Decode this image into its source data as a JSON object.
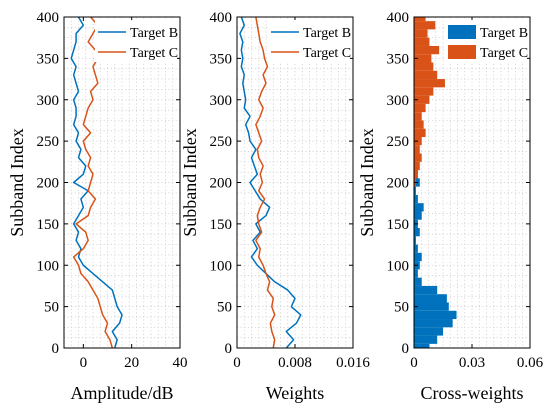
{
  "chart_data": [
    {
      "type": "line",
      "orientation": "x-value vs subband-index",
      "xlabel": "Amplitude/dB",
      "ylabel": "Subband Index",
      "xlim": [
        -8,
        40
      ],
      "ylim": [
        0,
        400
      ],
      "xticks": [
        0,
        20,
        40
      ],
      "yticks": [
        0,
        50,
        100,
        150,
        200,
        250,
        300,
        350,
        400
      ],
      "grid": true,
      "legend": "top-right",
      "y": [
        0,
        10,
        20,
        30,
        40,
        50,
        60,
        70,
        80,
        90,
        100,
        110,
        120,
        130,
        140,
        150,
        160,
        170,
        180,
        190,
        200,
        210,
        220,
        230,
        240,
        250,
        260,
        270,
        280,
        290,
        300,
        310,
        320,
        330,
        340,
        350,
        360,
        370,
        380,
        390,
        400
      ],
      "series": [
        {
          "name": "Target B",
          "color": "#0072BD",
          "values": [
            13,
            14,
            12,
            15,
            16,
            14,
            13,
            12,
            8,
            4,
            0,
            -2,
            -1,
            -3,
            -2,
            -4,
            -2,
            0,
            -1,
            2,
            -4,
            0,
            1,
            -2,
            -1,
            -3,
            -2,
            -4,
            -3,
            -3,
            -4,
            -2,
            -3,
            -4,
            -3,
            -5,
            -4,
            -3,
            -3,
            0,
            -2
          ]
        },
        {
          "name": "Target C",
          "color": "#D95319",
          "values": [
            12,
            11,
            9,
            10,
            8,
            7,
            6,
            4,
            2,
            -1,
            -2,
            -4,
            0,
            2,
            1,
            -3,
            2,
            3,
            5,
            2,
            3,
            4,
            2,
            3,
            1,
            0,
            3,
            0,
            1,
            2,
            4,
            3,
            6,
            5,
            4,
            6,
            5,
            2,
            4,
            6,
            3
          ]
        }
      ]
    },
    {
      "type": "line",
      "orientation": "x-value vs subband-index",
      "xlabel": "Weights",
      "ylabel": "Subband Index",
      "xlim": [
        0,
        0.016
      ],
      "ylim": [
        0,
        400
      ],
      "xticks": [
        0,
        0.008,
        0.016
      ],
      "xtick_labels": [
        "0",
        "0.008",
        "0.016"
      ],
      "yticks": [
        0,
        50,
        100,
        150,
        200,
        250,
        300,
        350,
        400
      ],
      "grid": true,
      "legend": "top-right",
      "y": [
        0,
        10,
        20,
        30,
        40,
        50,
        60,
        70,
        80,
        90,
        100,
        110,
        120,
        130,
        140,
        150,
        160,
        170,
        180,
        190,
        200,
        210,
        220,
        230,
        240,
        250,
        260,
        270,
        280,
        290,
        300,
        310,
        320,
        330,
        340,
        350,
        360,
        370,
        380,
        390,
        400
      ],
      "series": [
        {
          "name": "Target B",
          "color": "#0072BD",
          "values": [
            0.0068,
            0.0078,
            0.0068,
            0.0082,
            0.0088,
            0.0075,
            0.008,
            0.007,
            0.0052,
            0.004,
            0.0028,
            0.002,
            0.0028,
            0.0022,
            0.0032,
            0.0026,
            0.004,
            0.0045,
            0.0032,
            0.0025,
            0.0018,
            0.0028,
            0.0024,
            0.002,
            0.0026,
            0.0018,
            0.0016,
            0.0012,
            0.0018,
            0.001,
            0.0012,
            0.001,
            0.0008,
            0.001,
            0.0006,
            0.0008,
            0.0006,
            0.0008,
            0.0004,
            0.001,
            0.0006
          ]
        },
        {
          "name": "Target C",
          "color": "#D95319",
          "values": [
            0.005,
            0.0052,
            0.0048,
            0.0046,
            0.0052,
            0.0048,
            0.005,
            0.0042,
            0.0045,
            0.004,
            0.0036,
            0.003,
            0.0032,
            0.0026,
            0.0034,
            0.003,
            0.0028,
            0.0032,
            0.0038,
            0.003,
            0.0035,
            0.0032,
            0.0036,
            0.003,
            0.0028,
            0.0034,
            0.003,
            0.0026,
            0.0032,
            0.0036,
            0.003,
            0.0034,
            0.004,
            0.0036,
            0.0042,
            0.0038,
            0.0036,
            0.0032,
            0.003,
            0.0028,
            0.0026
          ]
        }
      ]
    },
    {
      "type": "bar",
      "orientation": "horizontal",
      "xlabel": "Cross-weights",
      "ylabel": "Subband Index",
      "xlim": [
        0,
        0.06
      ],
      "ylim": [
        0,
        400
      ],
      "xticks": [
        0,
        0.03,
        0.06
      ],
      "xtick_labels": [
        "0",
        "0.03",
        "0.06"
      ],
      "yticks": [
        0,
        50,
        100,
        150,
        200,
        250,
        300,
        350,
        400
      ],
      "grid": true,
      "legend": "top-right",
      "y": [
        0,
        10,
        20,
        30,
        40,
        50,
        60,
        70,
        80,
        90,
        100,
        110,
        120,
        130,
        140,
        150,
        160,
        170,
        180,
        190,
        200,
        210,
        220,
        230,
        240,
        250,
        260,
        270,
        280,
        290,
        300,
        310,
        320,
        330,
        340,
        350,
        360,
        370,
        380,
        390,
        400
      ],
      "series": [
        {
          "name": "Target B",
          "color": "#0072BD",
          "values": [
            0.008,
            0.012,
            0.015,
            0.02,
            0.022,
            0.018,
            0.017,
            0.012,
            0.004,
            0.002,
            0.003,
            0.004,
            0.002,
            0.001,
            0.003,
            0.002,
            0.004,
            0.005,
            0.002,
            0.001,
            0.003,
            0.002,
            0.001,
            0.0,
            0.0,
            0.0,
            0.0,
            0.0,
            0.0,
            0.0,
            0.0,
            0.0,
            0.0,
            0.0,
            0.0,
            0.0,
            0.0,
            0.0,
            0.0,
            0.0,
            0.0
          ]
        },
        {
          "name": "Target C",
          "color": "#D95319",
          "values": [
            0.0,
            0.0,
            0.0,
            0.0,
            0.0,
            0.0,
            0.0,
            0.0,
            0.0,
            0.0,
            0.0,
            0.0,
            0.0,
            0.0,
            0.0,
            0.0,
            0.0,
            0.0,
            0.0,
            0.0,
            0.001,
            0.002,
            0.003,
            0.004,
            0.003,
            0.004,
            0.006,
            0.005,
            0.004,
            0.006,
            0.008,
            0.01,
            0.016,
            0.012,
            0.01,
            0.009,
            0.013,
            0.008,
            0.007,
            0.011,
            0.006
          ]
        }
      ]
    }
  ]
}
